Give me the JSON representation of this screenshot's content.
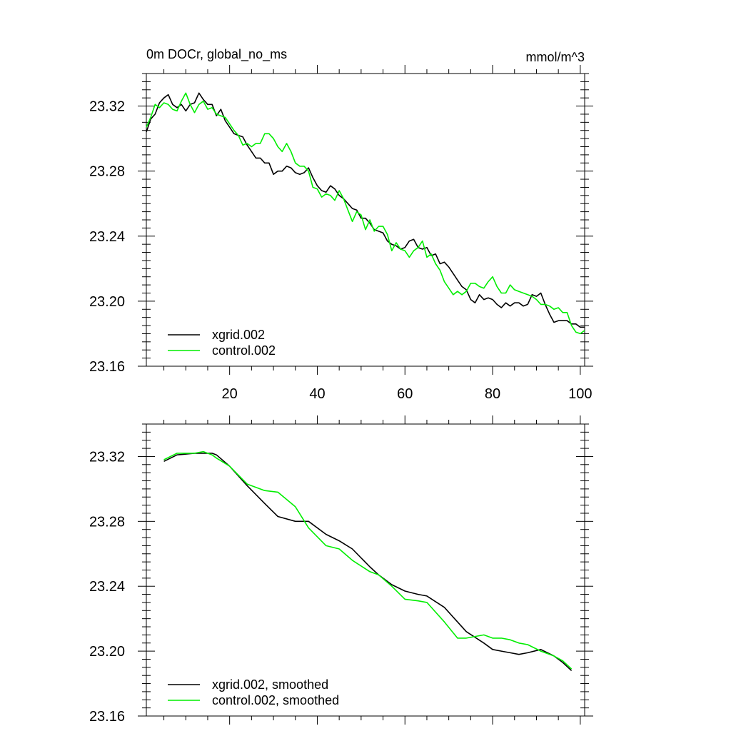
{
  "header": {
    "left_title": "0m DOCr, global_no_ms",
    "right_title": "mmol/m^3"
  },
  "chart_data": [
    {
      "type": "line",
      "title": "0m DOCr, global_no_ms",
      "units": "mmol/m^3",
      "xlim": [
        1,
        101
      ],
      "ylim": [
        23.16,
        23.34
      ],
      "xticks": [
        20,
        40,
        60,
        80,
        100
      ],
      "xtick_labels": [
        "20",
        "40",
        "60",
        "80",
        "100"
      ],
      "yticks": [
        23.16,
        23.2,
        23.24,
        23.28,
        23.32
      ],
      "ytick_labels": [
        "23.16",
        "23.20",
        "23.24",
        "23.28",
        "23.32"
      ],
      "legend_position": "bottom-left",
      "grid": false,
      "series": [
        {
          "name": "xgrid.002",
          "color": "#000000",
          "x": [
            1,
            2,
            3,
            4,
            5,
            6,
            7,
            8,
            9,
            10,
            11,
            12,
            13,
            14,
            15,
            16,
            17,
            18,
            19,
            20,
            21,
            22,
            23,
            24,
            25,
            26,
            27,
            28,
            29,
            30,
            31,
            32,
            33,
            34,
            35,
            36,
            37,
            38,
            39,
            40,
            41,
            42,
            43,
            44,
            45,
            46,
            47,
            48,
            49,
            50,
            51,
            52,
            53,
            54,
            55,
            56,
            57,
            58,
            59,
            60,
            61,
            62,
            63,
            64,
            65,
            66,
            67,
            68,
            69,
            70,
            71,
            72,
            73,
            74,
            75,
            76,
            77,
            78,
            79,
            80,
            81,
            82,
            83,
            84,
            85,
            86,
            87,
            88,
            89,
            90,
            91,
            92,
            93,
            94,
            95,
            96,
            97,
            98,
            99,
            100,
            101
          ],
          "y": [
            23.304,
            23.312,
            23.315,
            23.322,
            23.325,
            23.327,
            23.321,
            23.319,
            23.321,
            23.317,
            23.321,
            23.322,
            23.328,
            23.324,
            23.321,
            23.321,
            23.314,
            23.318,
            23.311,
            23.307,
            23.303,
            23.302,
            23.301,
            23.296,
            23.292,
            23.288,
            23.288,
            23.285,
            23.285,
            23.278,
            23.28,
            23.28,
            23.283,
            23.282,
            23.279,
            23.278,
            23.279,
            23.282,
            23.276,
            23.271,
            23.268,
            23.267,
            23.271,
            23.269,
            23.265,
            23.263,
            23.26,
            23.257,
            23.256,
            23.251,
            23.251,
            23.248,
            23.244,
            23.243,
            23.242,
            23.237,
            23.235,
            23.234,
            23.232,
            23.233,
            23.237,
            23.238,
            23.233,
            23.232,
            23.233,
            23.228,
            23.229,
            23.223,
            23.224,
            23.221,
            23.217,
            23.213,
            23.209,
            23.207,
            23.201,
            23.199,
            23.204,
            23.201,
            23.202,
            23.201,
            23.198,
            23.196,
            23.199,
            23.197,
            23.199,
            23.199,
            23.197,
            23.198,
            23.204,
            23.203,
            23.205,
            23.198,
            23.192,
            23.187,
            23.188,
            23.188,
            23.188,
            23.186,
            23.186,
            23.184,
            23.184
          ]
        },
        {
          "name": "control.002",
          "color": "#00ee00",
          "x": [
            1,
            2,
            3,
            4,
            5,
            6,
            7,
            8,
            9,
            10,
            11,
            12,
            13,
            14,
            15,
            16,
            17,
            18,
            19,
            20,
            21,
            22,
            23,
            24,
            25,
            26,
            27,
            28,
            29,
            30,
            31,
            32,
            33,
            34,
            35,
            36,
            37,
            38,
            39,
            40,
            41,
            42,
            43,
            44,
            45,
            46,
            47,
            48,
            49,
            50,
            51,
            52,
            53,
            54,
            55,
            56,
            57,
            58,
            59,
            60,
            61,
            62,
            63,
            64,
            65,
            66,
            67,
            68,
            69,
            70,
            71,
            72,
            73,
            74,
            75,
            76,
            77,
            78,
            79,
            80,
            81,
            82,
            83,
            84,
            85,
            86,
            87,
            88,
            89,
            90,
            91,
            92,
            93,
            94,
            95,
            96,
            97,
            98,
            99,
            100,
            101
          ],
          "y": [
            23.307,
            23.313,
            23.321,
            23.319,
            23.322,
            23.321,
            23.318,
            23.317,
            23.323,
            23.328,
            23.321,
            23.316,
            23.321,
            23.323,
            23.318,
            23.319,
            23.315,
            23.314,
            23.313,
            23.309,
            23.305,
            23.302,
            23.296,
            23.297,
            23.295,
            23.297,
            23.297,
            23.303,
            23.303,
            23.3,
            23.295,
            23.292,
            23.297,
            23.292,
            23.285,
            23.283,
            23.283,
            23.28,
            23.27,
            23.269,
            23.264,
            23.266,
            23.265,
            23.262,
            23.268,
            23.263,
            23.256,
            23.249,
            23.255,
            23.253,
            23.244,
            23.25,
            23.243,
            23.246,
            23.246,
            23.241,
            23.231,
            23.236,
            23.232,
            23.231,
            23.227,
            23.231,
            23.233,
            23.237,
            23.227,
            23.229,
            23.223,
            23.219,
            23.212,
            23.208,
            23.204,
            23.206,
            23.204,
            23.206,
            23.211,
            23.211,
            23.209,
            23.208,
            23.212,
            23.215,
            23.209,
            23.205,
            23.205,
            23.21,
            23.207,
            23.206,
            23.205,
            23.204,
            23.203,
            23.201,
            23.198,
            23.198,
            23.197,
            23.195,
            23.196,
            23.193,
            23.193,
            23.185,
            23.181,
            23.18,
            23.182
          ]
        }
      ]
    },
    {
      "type": "line",
      "xlim": [
        1,
        101
      ],
      "ylim": [
        23.16,
        23.34
      ],
      "xticks": [
        20,
        40,
        60,
        80,
        100
      ],
      "yticks": [
        23.16,
        23.2,
        23.24,
        23.28,
        23.32
      ],
      "ytick_labels": [
        "23.16",
        "23.20",
        "23.24",
        "23.28",
        "23.32"
      ],
      "legend_position": "bottom-left",
      "grid": false,
      "series": [
        {
          "name": "xgrid.002, smoothed",
          "color": "#000000",
          "x": [
            5,
            8,
            12,
            14,
            16,
            17,
            20,
            24,
            28,
            31,
            35,
            38,
            42,
            45,
            48,
            52,
            54,
            57,
            60,
            63,
            65,
            69,
            72,
            74,
            78,
            80,
            82,
            84,
            86,
            88,
            91,
            94,
            96,
            98
          ],
          "y": [
            23.317,
            23.321,
            23.322,
            23.322,
            23.322,
            23.321,
            23.314,
            23.302,
            23.291,
            23.283,
            23.28,
            23.28,
            23.272,
            23.268,
            23.263,
            23.252,
            23.247,
            23.241,
            23.237,
            23.235,
            23.234,
            23.227,
            23.218,
            23.212,
            23.205,
            23.201,
            23.2,
            23.199,
            23.198,
            23.199,
            23.201,
            23.197,
            23.193,
            23.188
          ]
        },
        {
          "name": "control.002, smoothed",
          "color": "#00ee00",
          "x": [
            5,
            8,
            12,
            14,
            16,
            17,
            20,
            24,
            28,
            31,
            35,
            38,
            42,
            45,
            48,
            52,
            54,
            57,
            60,
            63,
            65,
            69,
            72,
            74,
            78,
            80,
            82,
            84,
            86,
            88,
            91,
            94,
            96,
            98
          ],
          "y": [
            23.318,
            23.322,
            23.322,
            23.323,
            23.321,
            23.319,
            23.314,
            23.303,
            23.299,
            23.298,
            23.289,
            23.276,
            23.265,
            23.263,
            23.256,
            23.249,
            23.247,
            23.24,
            23.232,
            23.231,
            23.23,
            23.218,
            23.208,
            23.208,
            23.21,
            23.208,
            23.208,
            23.207,
            23.205,
            23.204,
            23.2,
            23.197,
            23.194,
            23.189
          ]
        }
      ]
    }
  ]
}
